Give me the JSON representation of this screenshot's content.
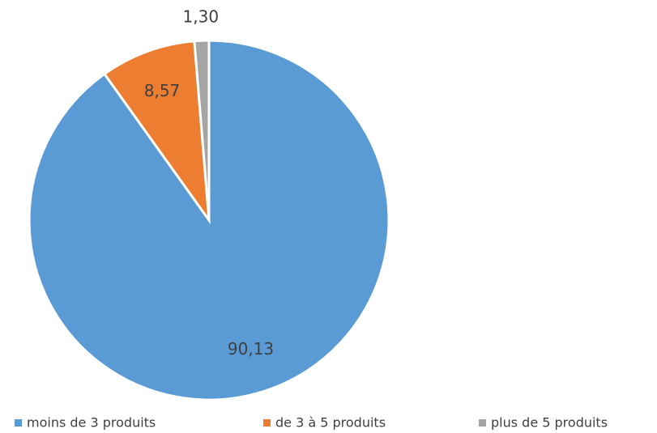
{
  "chart_data": {
    "type": "pie",
    "categories": [
      "moins de 3 produits",
      "de 3 à 5 produits",
      "plus de 5 produits"
    ],
    "values": [
      90.13,
      8.57,
      1.3
    ],
    "value_labels": [
      "90,13",
      "8,57",
      "1,30"
    ],
    "colors": [
      "#5b9bd5",
      "#ed7d31",
      "#a5a5a5"
    ],
    "legend": "bottom"
  }
}
